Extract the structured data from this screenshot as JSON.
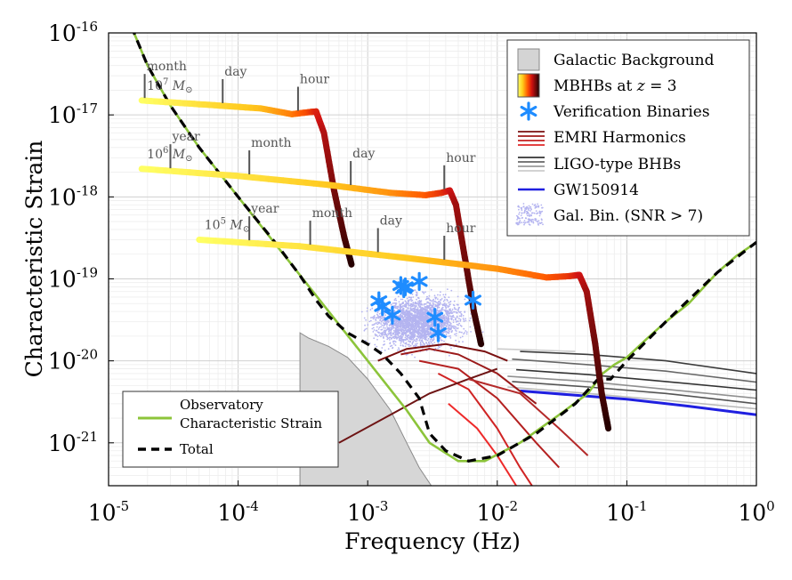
{
  "chart_data": {
    "type": "line",
    "xscale": "log",
    "yscale": "log",
    "xlim": [
      1e-05,
      1
    ],
    "ylim": [
      3e-22,
      1e-16
    ],
    "xlabel": "Frequency (Hz)",
    "ylabel": "Characteristic Strain",
    "grid": true,
    "x_ticks": [
      {
        "base": "10",
        "exp": "-5",
        "value": 1e-05
      },
      {
        "base": "10",
        "exp": "-4",
        "value": 0.0001
      },
      {
        "base": "10",
        "exp": "-3",
        "value": 0.001
      },
      {
        "base": "10",
        "exp": "-2",
        "value": 0.01
      },
      {
        "base": "10",
        "exp": "-1",
        "value": 0.1
      },
      {
        "base": "10",
        "exp": "0",
        "value": 1
      }
    ],
    "y_ticks": [
      {
        "base": "10",
        "exp": "-16",
        "value": 1e-16
      },
      {
        "base": "10",
        "exp": "-17",
        "value": 1e-17
      },
      {
        "base": "10",
        "exp": "-18",
        "value": 1e-18
      },
      {
        "base": "10",
        "exp": "-19",
        "value": 1e-19
      },
      {
        "base": "10",
        "exp": "-20",
        "value": 1e-20
      },
      {
        "base": "10",
        "exp": "-21",
        "value": 1e-21
      }
    ],
    "legend_main": {
      "placement": "top-right",
      "entries": [
        {
          "key": "galactic",
          "label": "Galactic Background"
        },
        {
          "key": "mbhb",
          "label_parts": [
            "MBHBs at ",
            "z",
            " = 3"
          ]
        },
        {
          "key": "vb",
          "label": "Verification Binaries"
        },
        {
          "key": "emri",
          "label": "EMRI Harmonics"
        },
        {
          "key": "ligo",
          "label": "LIGO-type BHBs"
        },
        {
          "key": "gw",
          "label": "GW150914"
        },
        {
          "key": "galbin",
          "label": "Gal. Bin. (SNR > 7)"
        }
      ]
    },
    "legend_secondary": {
      "placement": "bottom-left",
      "entries": [
        {
          "key": "sens",
          "label_lines": [
            "Observatory",
            "Characteristic Strain"
          ]
        },
        {
          "key": "total",
          "label": "Total"
        }
      ]
    },
    "mbhb_tracks": [
      {
        "mass_label": {
          "pre": "10",
          "sup": "7",
          "unit": " M",
          "sub": "⊙"
        },
        "points": [
          [
            1.8e-05,
            1.5e-17
          ],
          [
            5e-05,
            1.35e-17
          ],
          [
            0.00015,
            1.2e-17
          ],
          [
            0.00026,
            1.02e-17
          ],
          [
            0.00035,
            1.08e-17
          ],
          [
            0.0004,
            1.1e-17
          ],
          [
            0.00046,
            6e-18
          ],
          [
            0.00055,
            1.2e-18
          ],
          [
            0.00066,
            3.2e-19
          ],
          [
            0.00075,
            1.5e-19
          ]
        ],
        "time_markers": [
          {
            "label": "month",
            "f": 1.9e-05
          },
          {
            "label": "day",
            "f": 7.6e-05
          },
          {
            "label": "hour",
            "f": 0.00029
          }
        ]
      },
      {
        "mass_label": {
          "pre": "10",
          "sup": "6",
          "unit": " M",
          "sub": "⊙"
        },
        "points": [
          [
            1.8e-05,
            2.2e-18
          ],
          [
            0.0001,
            1.8e-18
          ],
          [
            0.0005,
            1.4e-18
          ],
          [
            0.0015,
            1.12e-18
          ],
          [
            0.0028,
            1.05e-18
          ],
          [
            0.0037,
            1.12e-18
          ],
          [
            0.0043,
            1.2e-18
          ],
          [
            0.0048,
            8e-19
          ],
          [
            0.0057,
            1.6e-19
          ],
          [
            0.0066,
            4e-20
          ],
          [
            0.0075,
            1.6e-20
          ]
        ],
        "time_markers": [
          {
            "label": "year",
            "f": 3e-05
          },
          {
            "label": "month",
            "f": 0.000122
          },
          {
            "label": "day",
            "f": 0.00074
          },
          {
            "label": "hour",
            "f": 0.0039
          }
        ]
      },
      {
        "mass_label": {
          "pre": "10",
          "sup": "5",
          "unit": " M",
          "sub": "⊙"
        },
        "points": [
          [
            5e-05,
            3e-19
          ],
          [
            0.0003,
            2.5e-19
          ],
          [
            0.002,
            1.8e-19
          ],
          [
            0.01,
            1.33e-19
          ],
          [
            0.024,
            1.04e-19
          ],
          [
            0.036,
            1.08e-19
          ],
          [
            0.043,
            1.12e-19
          ],
          [
            0.049,
            7e-20
          ],
          [
            0.057,
            1.6e-20
          ],
          [
            0.064,
            4e-21
          ],
          [
            0.072,
            1.5e-21
          ]
        ],
        "time_markers": [
          {
            "label": "year",
            "f": 0.000122
          },
          {
            "label": "month",
            "f": 0.00036
          },
          {
            "label": "day",
            "f": 0.0012
          },
          {
            "label": "hour",
            "f": 0.0039
          }
        ]
      }
    ],
    "verification_binaries": [
      [
        0.00122,
        5.4e-20
      ],
      [
        0.0013,
        4.6e-20
      ],
      [
        0.00155,
        3.6e-20
      ],
      [
        0.0018,
        8.3e-20
      ],
      [
        0.0019,
        7.6e-20
      ],
      [
        0.00195,
        8e-20
      ],
      [
        0.0025,
        9.3e-20
      ],
      [
        0.0033,
        3.4e-20
      ],
      [
        0.0035,
        2.2e-20
      ],
      [
        0.0065,
        5.5e-20
      ]
    ],
    "galactic_background": [
      [
        0.0003,
        2.2e-20
      ],
      [
        0.00035,
        1.9e-20
      ],
      [
        0.0005,
        1.5e-20
      ],
      [
        0.0007,
        1.1e-20
      ],
      [
        0.001,
        6e-21
      ],
      [
        0.0015,
        2.5e-21
      ],
      [
        0.002,
        1e-21
      ],
      [
        0.0025,
        5e-22
      ],
      [
        0.0031,
        3e-22
      ]
    ],
    "sensitivity_curve": [
      [
        1.5e-05,
        1.2e-16
      ],
      [
        2e-05,
        4e-17
      ],
      [
        3e-05,
        1.3e-17
      ],
      [
        5e-05,
        4e-18
      ],
      [
        0.0001,
        1e-18
      ],
      [
        0.0002,
        2.5e-19
      ],
      [
        0.0005,
        4e-20
      ],
      [
        0.001,
        1e-20
      ],
      [
        0.002,
        2.5e-21
      ],
      [
        0.003,
        1e-21
      ],
      [
        0.005,
        6e-22
      ],
      [
        0.008,
        6e-22
      ],
      [
        0.015,
        1e-21
      ],
      [
        0.03,
        2.2e-21
      ],
      [
        0.05,
        4e-21
      ],
      [
        0.065,
        7e-21
      ],
      [
        0.08,
        9e-21
      ],
      [
        0.1,
        1.1e-20
      ],
      [
        0.15,
        2e-20
      ],
      [
        0.2,
        3e-20
      ],
      [
        0.3,
        5e-20
      ],
      [
        0.5,
        1.2e-19
      ],
      [
        0.7,
        1.9e-19
      ],
      [
        1.0,
        2.8e-19
      ]
    ],
    "total_curve": [
      [
        1.5e-05,
        1.2e-16
      ],
      [
        2e-05,
        4e-17
      ],
      [
        3e-05,
        1.3e-17
      ],
      [
        5e-05,
        4e-18
      ],
      [
        0.0001,
        1e-18
      ],
      [
        0.0002,
        2.6e-19
      ],
      [
        0.0003,
        1.1e-19
      ],
      [
        0.0004,
        5.5e-20
      ],
      [
        0.0005,
        3.5e-20
      ],
      [
        0.0007,
        2.2e-20
      ],
      [
        0.001,
        1.6e-20
      ],
      [
        0.0013,
        1.2e-20
      ],
      [
        0.0018,
        7e-21
      ],
      [
        0.0025,
        3.5e-21
      ],
      [
        0.003,
        1.3e-21
      ],
      [
        0.004,
        8e-22
      ],
      [
        0.006,
        6e-22
      ],
      [
        0.01,
        7e-22
      ],
      [
        0.02,
        1.3e-21
      ],
      [
        0.04,
        3e-21
      ],
      [
        0.06,
        6e-21
      ],
      [
        0.075,
        6e-21
      ],
      [
        0.1,
        1e-20
      ],
      [
        0.2,
        3e-20
      ],
      [
        0.5,
        1.2e-19
      ],
      [
        1.0,
        2.8e-19
      ]
    ],
    "emri_harmonics": [
      {
        "color": "#7a1010",
        "points": [
          [
            0.0012,
            1e-20
          ],
          [
            0.002,
            1.4e-20
          ],
          [
            0.004,
            1.6e-20
          ],
          [
            0.008,
            1.3e-20
          ],
          [
            0.012,
            1e-20
          ]
        ]
      },
      {
        "color": "#9b1a1a",
        "points": [
          [
            0.0018,
            1.2e-20
          ],
          [
            0.003,
            1.4e-20
          ],
          [
            0.005,
            1.2e-20
          ],
          [
            0.01,
            7e-21
          ],
          [
            0.02,
            3e-21
          ]
        ]
      },
      {
        "color": "#b42020",
        "points": [
          [
            0.0025,
            1e-20
          ],
          [
            0.005,
            8e-21
          ],
          [
            0.01,
            3.5e-21
          ],
          [
            0.02,
            1e-21
          ],
          [
            0.03,
            5e-22
          ]
        ]
      },
      {
        "color": "#d02424",
        "points": [
          [
            0.0035,
            7e-21
          ],
          [
            0.006,
            4.5e-21
          ],
          [
            0.01,
            1.5e-21
          ],
          [
            0.015,
            5e-22
          ],
          [
            0.02,
            2.5e-22
          ]
        ]
      },
      {
        "color": "#ee2a2a",
        "points": [
          [
            0.0042,
            3e-21
          ],
          [
            0.007,
            1.5e-21
          ],
          [
            0.01,
            7e-22
          ],
          [
            0.014,
            3e-22
          ]
        ]
      },
      {
        "color": "#6e1414",
        "points": [
          [
            0.0006,
            1e-21
          ],
          [
            0.0015,
            2.2e-21
          ],
          [
            0.003,
            4e-21
          ],
          [
            0.006,
            6e-21
          ],
          [
            0.01,
            8e-21
          ]
        ]
      },
      {
        "color": "#b42a2a",
        "points": [
          [
            0.006,
            6e-21
          ],
          [
            0.015,
            4e-21
          ],
          [
            0.03,
            1.5e-21
          ],
          [
            0.05,
            7e-22
          ]
        ]
      }
    ],
    "ligo_bhbs": [
      {
        "color": "#3c3c3c",
        "points": [
          [
            0.015,
            1.3e-20
          ],
          [
            0.05,
            1.2e-20
          ],
          [
            0.2,
            1e-20
          ],
          [
            1.0,
            7e-21
          ]
        ]
      },
      {
        "color": "#666666",
        "points": [
          [
            0.013,
            1.05e-20
          ],
          [
            0.05,
            9e-21
          ],
          [
            0.2,
            7.5e-21
          ],
          [
            1.0,
            5.5e-21
          ]
        ]
      },
      {
        "color": "#333333",
        "points": [
          [
            0.014,
            7.8e-21
          ],
          [
            0.05,
            6.8e-21
          ],
          [
            0.2,
            5.6e-21
          ],
          [
            1.0,
            4.4e-21
          ]
        ]
      },
      {
        "color": "#909090",
        "points": [
          [
            0.012,
            6.5e-21
          ],
          [
            0.05,
            5.6e-21
          ],
          [
            0.2,
            4.5e-21
          ],
          [
            1.0,
            3.5e-21
          ]
        ]
      },
      {
        "color": "#555555",
        "points": [
          [
            0.013,
            5.6e-21
          ],
          [
            0.05,
            4.8e-21
          ],
          [
            0.2,
            4e-21
          ],
          [
            1.0,
            3e-21
          ]
        ]
      },
      {
        "color": "#bbbbbb",
        "points": [
          [
            0.012,
            4.8e-21
          ],
          [
            0.05,
            4e-21
          ],
          [
            0.2,
            3.3e-21
          ],
          [
            1.0,
            2.6e-21
          ]
        ]
      },
      {
        "color": "#cccccc",
        "points": [
          [
            0.01,
            1.4e-20
          ],
          [
            0.02,
            1.35e-20
          ],
          [
            0.04,
            1.3e-20
          ]
        ]
      }
    ],
    "gw150914": {
      "color": "#1f1fe0",
      "points": [
        [
          0.015,
          4.3e-21
        ],
        [
          0.1,
          3.4e-21
        ],
        [
          0.3,
          2.8e-21
        ],
        [
          1.0,
          2.2e-21
        ]
      ]
    },
    "galactic_binaries_cloud": {
      "center_f": 0.0025,
      "center_h": 3e-20,
      "f_range": [
        0.0003,
        0.008
      ],
      "h_range": [
        5e-21,
        2e-19
      ],
      "color": "#b4b4f0"
    }
  }
}
